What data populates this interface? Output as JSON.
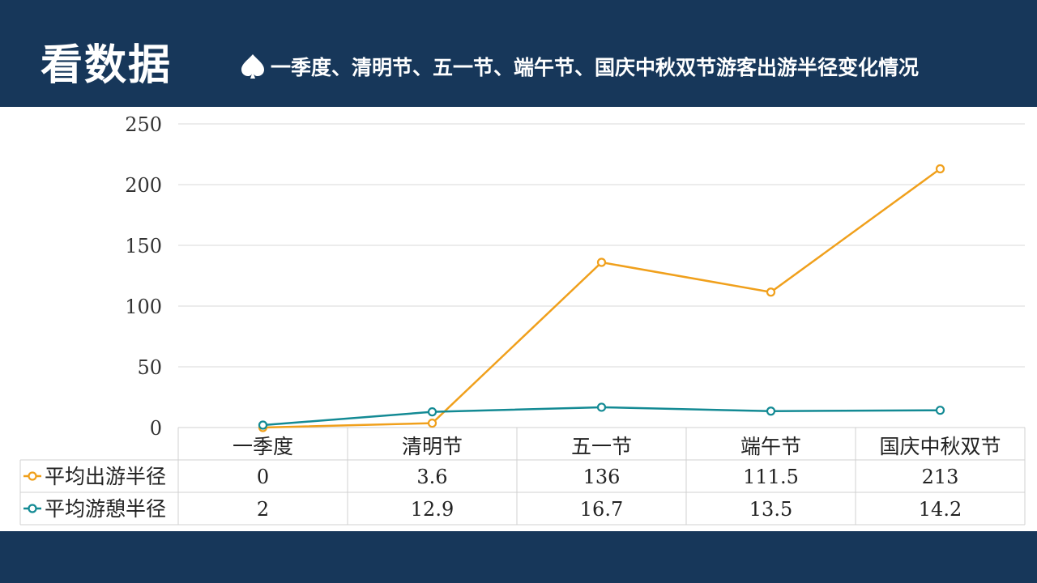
{
  "header": {
    "title": "看数据",
    "subtitle": "一季度、清明节、五一节、端午节、国庆中秋双节游客出游半径变化情况",
    "accent_color": "#17375a",
    "icon": "spade-icon"
  },
  "chart_data": {
    "type": "line",
    "title": "",
    "xlabel": "",
    "ylabel": "",
    "categories": [
      "一季度",
      "清明节",
      "五一节",
      "端午节",
      "国庆中秋双节"
    ],
    "ylim": [
      0,
      250
    ],
    "yticks": [
      0,
      50,
      100,
      150,
      200,
      250
    ],
    "grid": true,
    "legend": "data-table",
    "series": [
      {
        "name": "平均出游半径",
        "values": [
          0,
          3.6,
          136,
          111.5,
          213
        ],
        "labels": [
          "0",
          "3.6",
          "136",
          "111.5",
          "213"
        ],
        "color": "#f0a01c"
      },
      {
        "name": "平均游憩半径",
        "values": [
          2,
          12.9,
          16.7,
          13.5,
          14.2
        ],
        "labels": [
          "2",
          "12.9",
          "16.7",
          "13.5",
          "14.2"
        ],
        "color": "#138a94"
      }
    ]
  }
}
